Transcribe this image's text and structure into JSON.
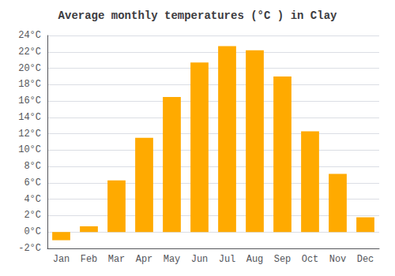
{
  "chart_data": {
    "type": "bar",
    "title": "Average monthly temperatures (°C ) in Clay",
    "categories": [
      "Jan",
      "Feb",
      "Mar",
      "Apr",
      "May",
      "Jun",
      "Jul",
      "Aug",
      "Sep",
      "Oct",
      "Nov",
      "Dec"
    ],
    "values": [
      -1.0,
      0.7,
      6.3,
      11.5,
      16.5,
      20.7,
      22.7,
      22.2,
      19.0,
      12.3,
      7.1,
      1.8
    ],
    "color": "#FFAA00",
    "ylim": [
      -2,
      24
    ],
    "yticks": [
      {
        "value": -2,
        "label": "-2°C"
      },
      {
        "value": 0,
        "label": "0°C"
      },
      {
        "value": 2,
        "label": "2°C"
      },
      {
        "value": 4,
        "label": "4°C"
      },
      {
        "value": 6,
        "label": "6°C"
      },
      {
        "value": 8,
        "label": "8°C"
      },
      {
        "value": 10,
        "label": "10°C"
      },
      {
        "value": 12,
        "label": "12°C"
      },
      {
        "value": 14,
        "label": "14°C"
      },
      {
        "value": 16,
        "label": "16°C"
      },
      {
        "value": 18,
        "label": "18°C"
      },
      {
        "value": 20,
        "label": "20°C"
      },
      {
        "value": 22,
        "label": "22°C"
      },
      {
        "value": 24,
        "label": "24°C"
      }
    ],
    "grid": true
  }
}
